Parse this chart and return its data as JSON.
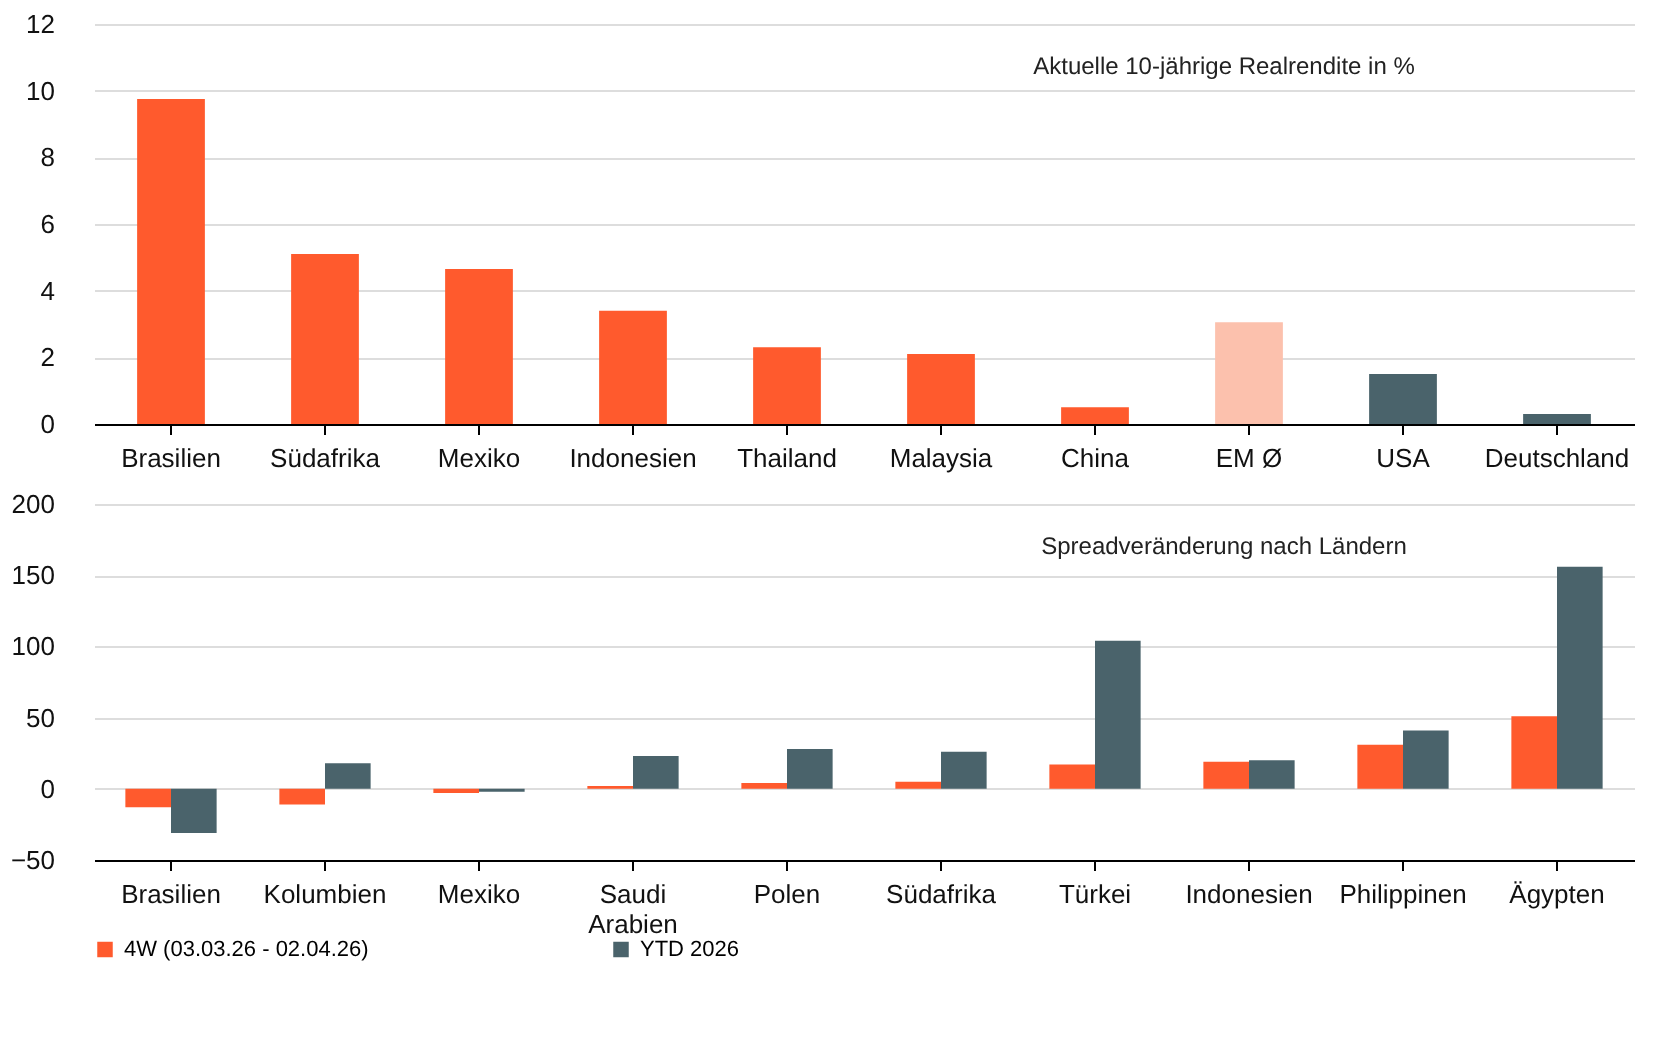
{
  "chart_data": [
    {
      "type": "bar",
      "title": "Aktuelle 10-jährige Realrendite in %",
      "categories": [
        "Brasilien",
        "Südafrika",
        "Mexiko",
        "Indonesien",
        "Thailand",
        "Malaysia",
        "China",
        "EM Ø",
        "USA",
        "Deutschland"
      ],
      "values": [
        9.75,
        5.1,
        4.65,
        3.4,
        2.3,
        2.1,
        0.5,
        3.05,
        1.5,
        0.3
      ],
      "colors": [
        "#ff5a2d",
        "#ff5a2d",
        "#ff5a2d",
        "#ff5a2d",
        "#ff5a2d",
        "#ff5a2d",
        "#ff5a2d",
        "#fcc1ad",
        "#4a636b",
        "#4a636b"
      ],
      "ylim": [
        0,
        12
      ],
      "yticks": [
        0,
        2,
        4,
        6,
        8,
        10,
        12
      ],
      "grid": "y"
    },
    {
      "type": "bar",
      "title": "Spreadveränderung nach Ländern",
      "categories": [
        "Brasilien",
        "Kolumbien",
        "Mexiko",
        "Saudi Arabien",
        "Polen",
        "Südafrika",
        "Türkei",
        "Indonesien",
        "Philippinen",
        "Ägypten"
      ],
      "series": [
        {
          "name": "4W (03.03.26 - 02.04.26)",
          "color": "#ff5a2d",
          "values": [
            -13,
            -11,
            -3,
            2,
            4,
            5,
            17,
            19,
            31,
            51
          ]
        },
        {
          "name": "YTD 2026",
          "color": "#4a636b",
          "values": [
            -31,
            18,
            -2,
            23,
            28,
            26,
            104,
            20,
            41,
            156
          ]
        }
      ],
      "ylim": [
        -50,
        200
      ],
      "yticks": [
        -50,
        0,
        50,
        100,
        150,
        200
      ],
      "grid": "y",
      "legend": "bottom"
    }
  ]
}
